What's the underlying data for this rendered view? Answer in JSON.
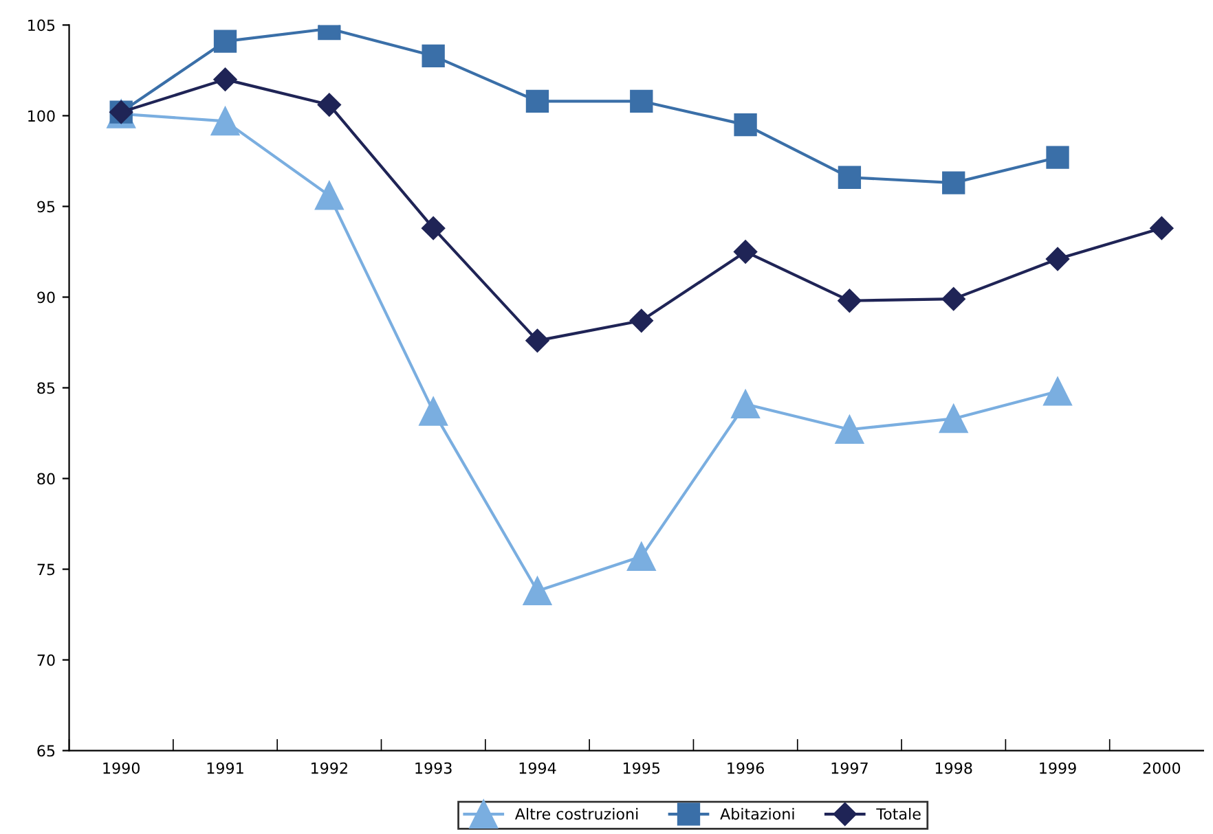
{
  "chart_data": {
    "type": "line",
    "categories": [
      "1990",
      "1991",
      "1992",
      "1993",
      "1994",
      "1995",
      "1996",
      "1997",
      "1998",
      "1999",
      "2000"
    ],
    "series": [
      {
        "name": "Altre costruzioni",
        "color": "#7aaee0",
        "marker": "triangle",
        "values": [
          100.1,
          99.7,
          95.6,
          83.7,
          73.8,
          75.7,
          84.1,
          82.7,
          83.3,
          84.8,
          null
        ]
      },
      {
        "name": "Abitazioni",
        "color": "#3a6fa8",
        "marker": "square",
        "values": [
          100.2,
          104.1,
          104.8,
          103.3,
          100.8,
          100.8,
          99.5,
          96.6,
          96.3,
          97.7,
          null
        ]
      },
      {
        "name": "Totale",
        "color": "#1f2456",
        "marker": "diamond",
        "values": [
          100.2,
          102.0,
          100.6,
          93.8,
          87.6,
          88.7,
          92.5,
          89.8,
          89.9,
          92.1,
          93.8
        ]
      }
    ],
    "ylim": [
      65,
      105
    ],
    "yticks": [
      65,
      70,
      75,
      80,
      85,
      90,
      95,
      100,
      105
    ],
    "grid": false,
    "legend": "bottom",
    "line_style": "solid"
  }
}
